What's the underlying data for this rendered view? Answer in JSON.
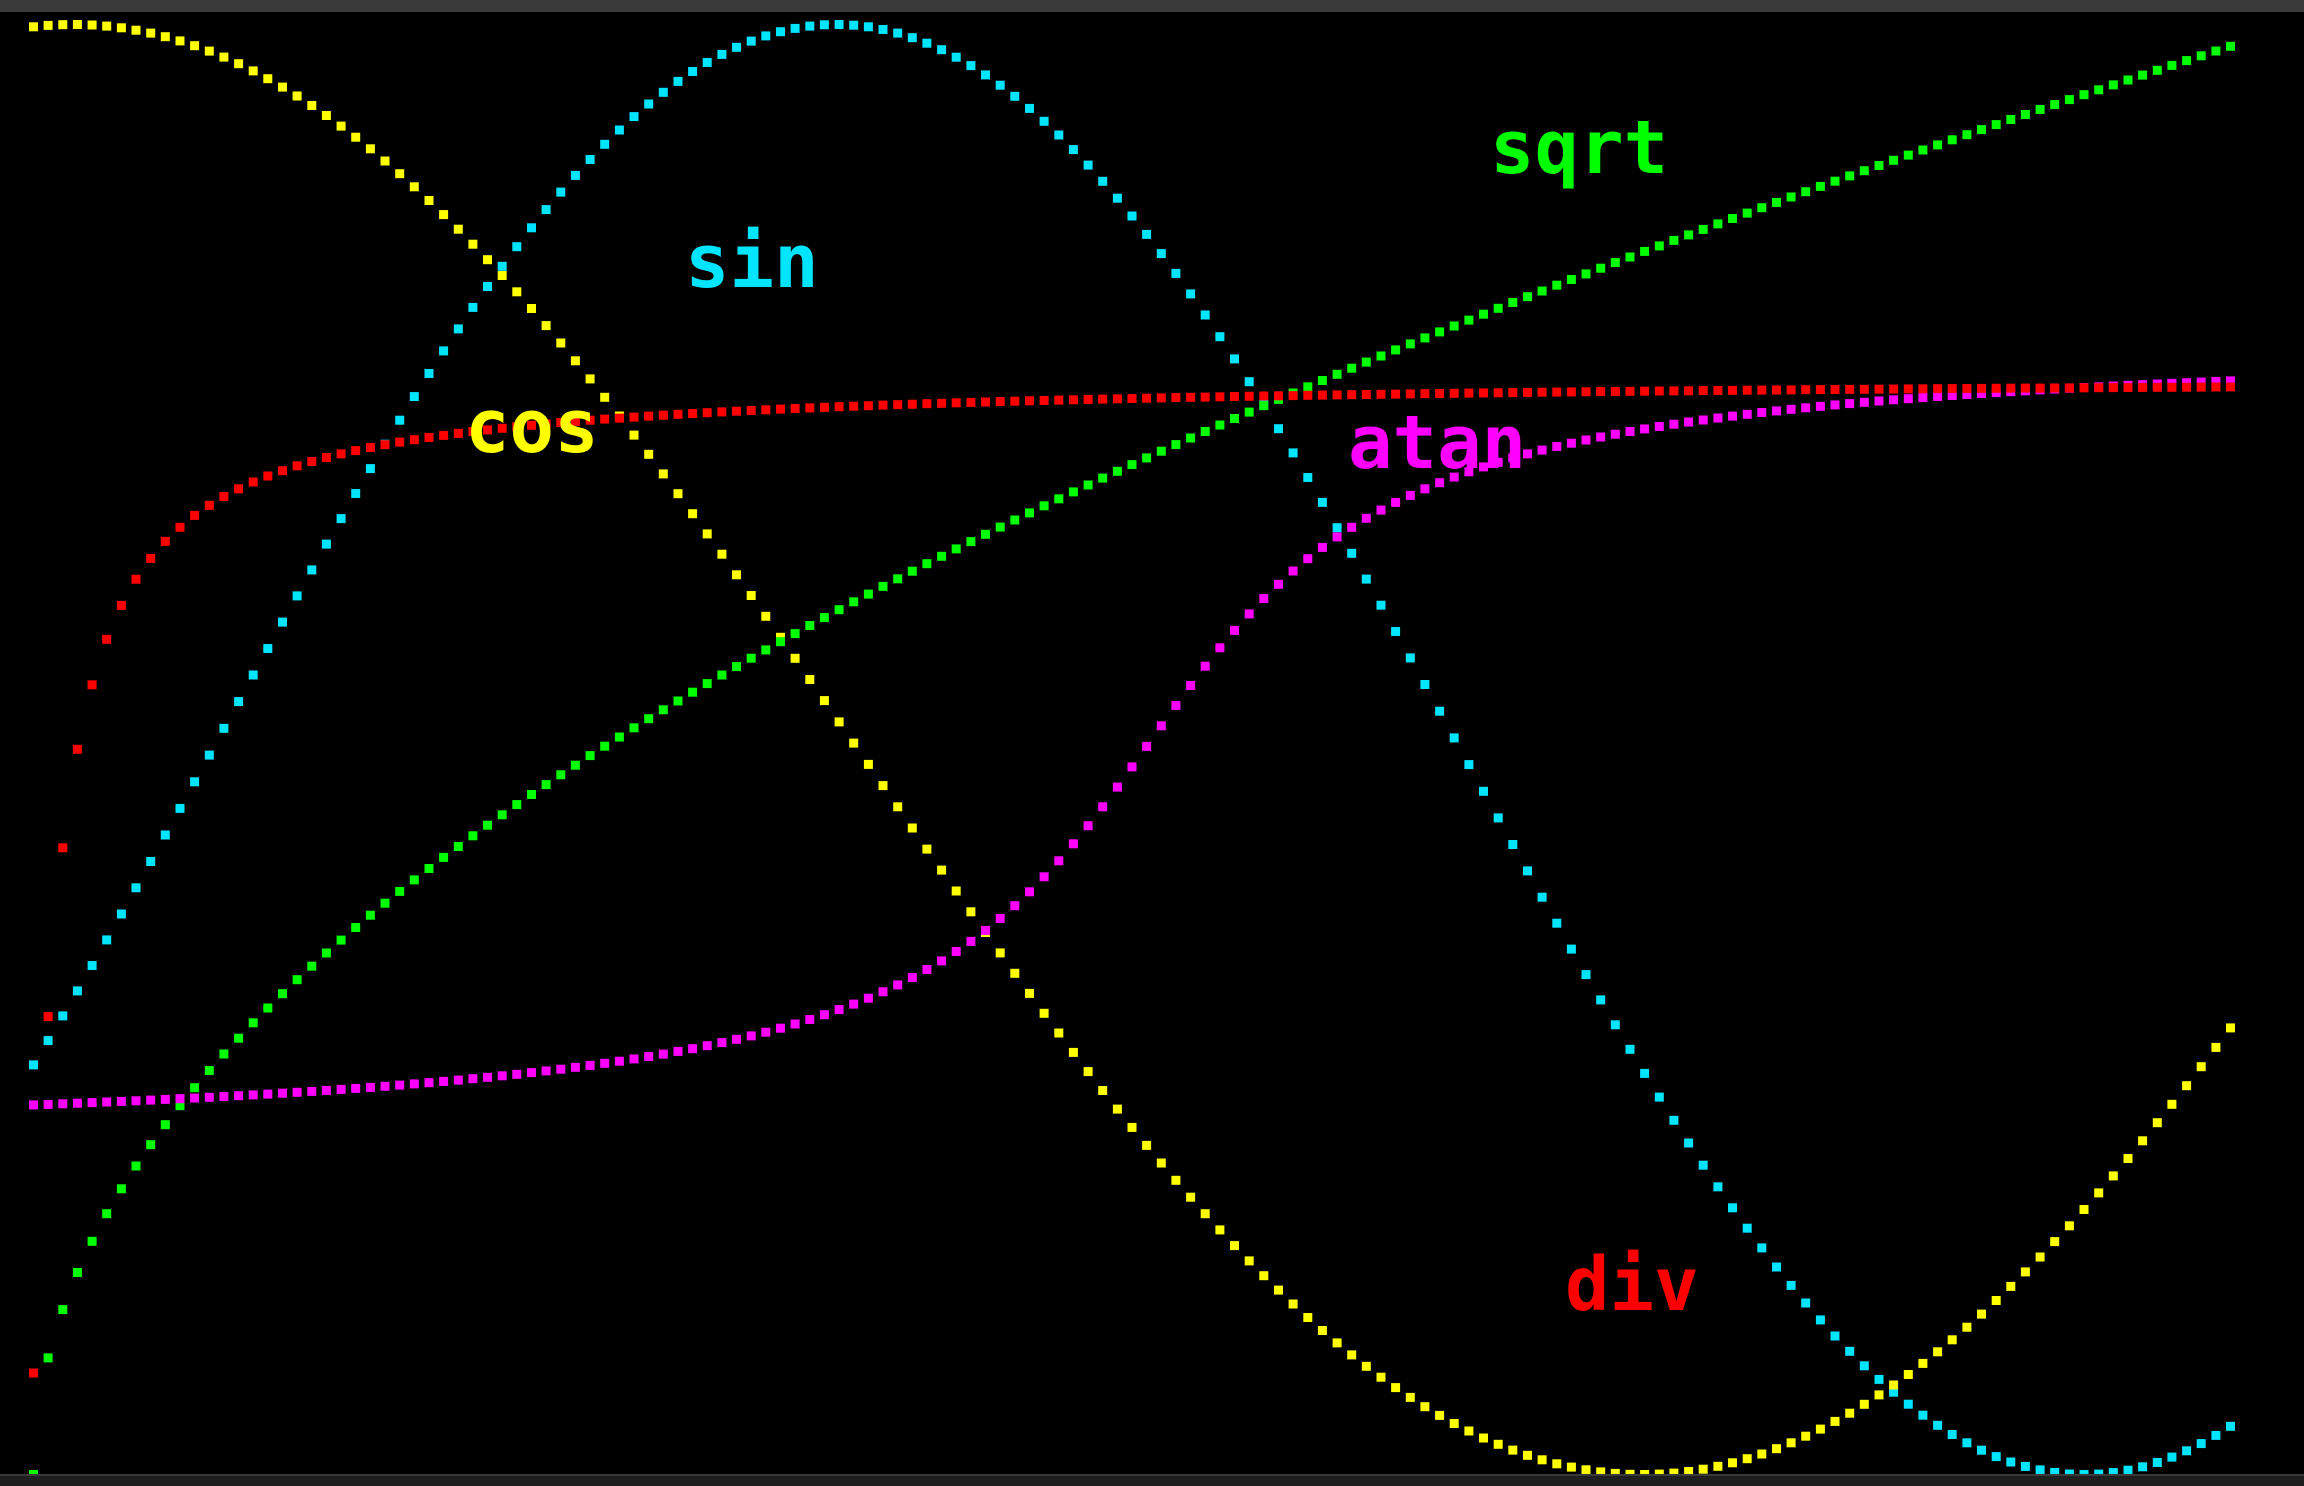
{
  "chart_data": {
    "type": "scatter",
    "title": "",
    "xlabel": "",
    "ylabel": "",
    "grid": false,
    "xlim": [
      0,
      1
    ],
    "ylim": [
      -1,
      1
    ],
    "series": [
      {
        "name": "sin",
        "color": "#00e5ff",
        "func": "sin",
        "x_range": [
          0,
          1
        ],
        "points": 150
      },
      {
        "name": "cos",
        "color": "#ffff00",
        "func": "cos",
        "x_range": [
          0,
          1
        ],
        "points": 150
      },
      {
        "name": "sqrt",
        "color": "#00ff00",
        "func": "sqrt",
        "x_range": [
          0,
          1
        ],
        "points": 150
      },
      {
        "name": "atan",
        "color": "#ff00ff",
        "func": "atan",
        "x_range": [
          0,
          1
        ],
        "points": 150
      },
      {
        "name": "div",
        "color": "#ff0000",
        "func": "div",
        "x_range": [
          0,
          1
        ],
        "points": 150
      }
    ]
  },
  "labels": {
    "sin": "sin",
    "cos": "cos",
    "sqrt": "sqrt",
    "atan": "atan",
    "div": "div"
  }
}
